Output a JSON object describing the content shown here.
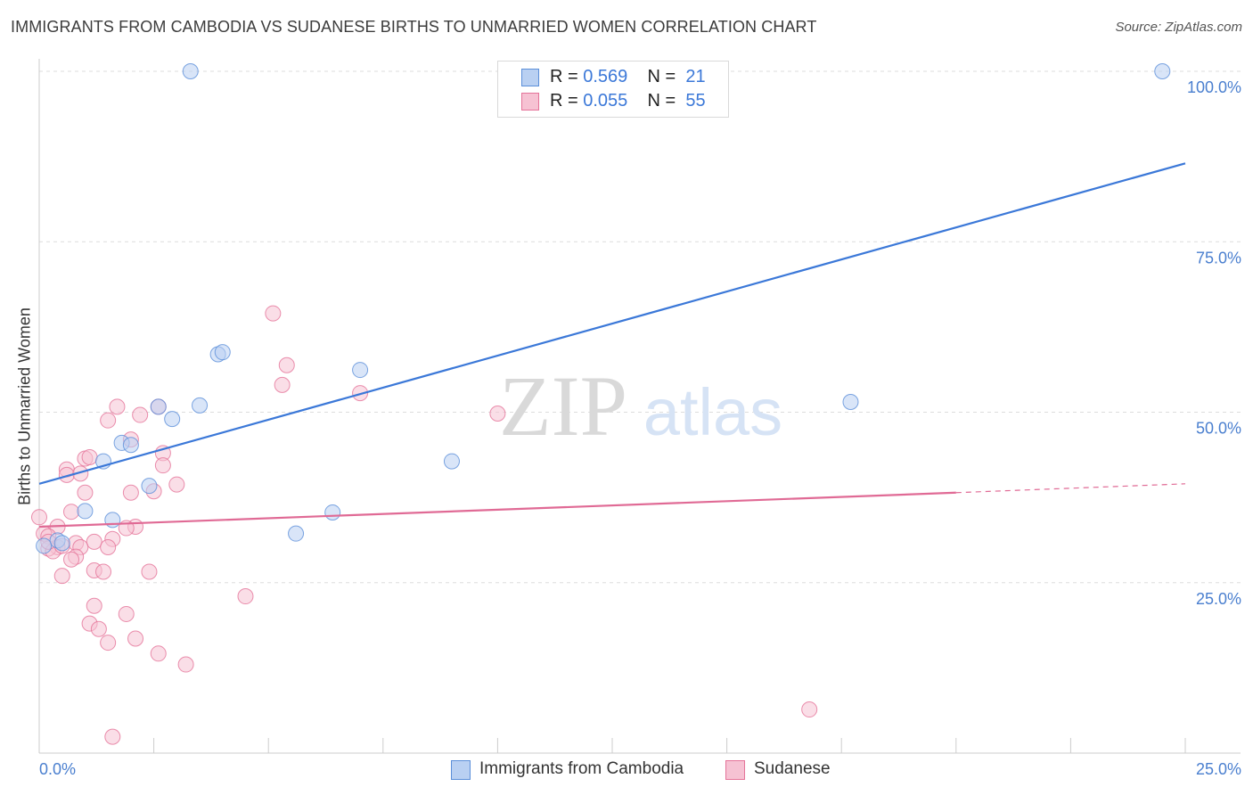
{
  "title": "IMMIGRANTS FROM CAMBODIA VS SUDANESE BIRTHS TO UNMARRIED WOMEN CORRELATION CHART",
  "source": "Source: ZipAtlas.com",
  "watermark": {
    "zip": "ZIP",
    "atlas": "atlas"
  },
  "legend": {
    "rows": [
      {
        "r_label": "R =",
        "r_value": "0.569",
        "n_label": "N =",
        "n_value": "21"
      },
      {
        "r_label": "R =",
        "r_value": "0.055",
        "n_label": "N =",
        "n_value": "55"
      }
    ]
  },
  "chart_data": {
    "type": "scatter",
    "title": "IMMIGRANTS FROM CAMBODIA VS SUDANESE BIRTHS TO UNMARRIED WOMEN CORRELATION CHART",
    "xlabel": "",
    "ylabel": "Births to Unmarried Women",
    "xlim": [
      0,
      25
    ],
    "ylim": [
      0,
      100
    ],
    "x_tick_labels": [
      "0.0%",
      "25.0%"
    ],
    "y_tick_labels": [
      "25.0%",
      "50.0%",
      "75.0%",
      "100.0%"
    ],
    "y_ticks": [
      25,
      50,
      75,
      100
    ],
    "grid": true,
    "legend_position": "top-center",
    "series": [
      {
        "name": "Immigrants from Cambodia",
        "color": "#5b8fd9",
        "fill": "#b9d0f2",
        "r": 0.569,
        "n": 21,
        "trend": {
          "x0": 0,
          "y0": 39.5,
          "x1": 25,
          "y1": 86.5
        },
        "points": [
          [
            3.3,
            100
          ],
          [
            24.5,
            100
          ],
          [
            3.9,
            58.5
          ],
          [
            4.0,
            58.8
          ],
          [
            7.0,
            56.2
          ],
          [
            17.7,
            51.5
          ],
          [
            3.5,
            51.0
          ],
          [
            2.6,
            50.8
          ],
          [
            2.9,
            49.0
          ],
          [
            1.8,
            45.5
          ],
          [
            2.0,
            45.2
          ],
          [
            1.4,
            42.8
          ],
          [
            9.0,
            42.8
          ],
          [
            2.4,
            39.2
          ],
          [
            1.0,
            35.5
          ],
          [
            6.4,
            35.3
          ],
          [
            1.6,
            34.2
          ],
          [
            5.6,
            32.2
          ],
          [
            0.4,
            31.2
          ],
          [
            0.5,
            30.8
          ],
          [
            0.1,
            30.4
          ]
        ]
      },
      {
        "name": "Sudanese",
        "color": "#e57399",
        "fill": "#f6c2d3",
        "r": 0.055,
        "n": 55,
        "trend": {
          "x0": 0,
          "y0": 33.2,
          "x1": 20,
          "y1": 38.2,
          "dash_to_x": 25,
          "dash_to_y": 39.5
        },
        "points": [
          [
            5.1,
            64.5
          ],
          [
            5.4,
            56.9
          ],
          [
            5.3,
            54.0
          ],
          [
            7.0,
            52.8
          ],
          [
            10.0,
            49.8
          ],
          [
            1.7,
            50.8
          ],
          [
            2.6,
            50.8
          ],
          [
            2.2,
            49.6
          ],
          [
            1.5,
            48.8
          ],
          [
            2.0,
            46.0
          ],
          [
            2.7,
            44.0
          ],
          [
            1.0,
            43.2
          ],
          [
            1.1,
            43.4
          ],
          [
            2.7,
            42.2
          ],
          [
            0.6,
            41.6
          ],
          [
            0.6,
            40.8
          ],
          [
            0.9,
            41.0
          ],
          [
            3.0,
            39.4
          ],
          [
            2.5,
            38.4
          ],
          [
            2.0,
            38.2
          ],
          [
            1.0,
            38.2
          ],
          [
            0.7,
            35.4
          ],
          [
            0.0,
            34.6
          ],
          [
            0.4,
            33.2
          ],
          [
            2.1,
            33.2
          ],
          [
            1.9,
            33.0
          ],
          [
            0.1,
            32.2
          ],
          [
            0.2,
            31.8
          ],
          [
            1.6,
            31.4
          ],
          [
            1.2,
            31.0
          ],
          [
            0.8,
            30.8
          ],
          [
            0.9,
            30.2
          ],
          [
            0.4,
            30.2
          ],
          [
            0.2,
            30.0
          ],
          [
            0.3,
            29.6
          ],
          [
            0.8,
            28.8
          ],
          [
            0.7,
            28.4
          ],
          [
            1.5,
            30.2
          ],
          [
            1.2,
            26.8
          ],
          [
            1.4,
            26.6
          ],
          [
            2.4,
            26.6
          ],
          [
            0.5,
            26.0
          ],
          [
            4.5,
            23.0
          ],
          [
            1.2,
            21.6
          ],
          [
            1.9,
            20.4
          ],
          [
            1.1,
            19.0
          ],
          [
            1.3,
            18.2
          ],
          [
            2.1,
            16.8
          ],
          [
            1.5,
            16.2
          ],
          [
            2.6,
            14.6
          ],
          [
            3.2,
            13.0
          ],
          [
            16.8,
            6.4
          ],
          [
            1.6,
            2.4
          ],
          [
            0.2,
            31.0
          ],
          [
            0.5,
            30.4
          ]
        ]
      }
    ]
  }
}
